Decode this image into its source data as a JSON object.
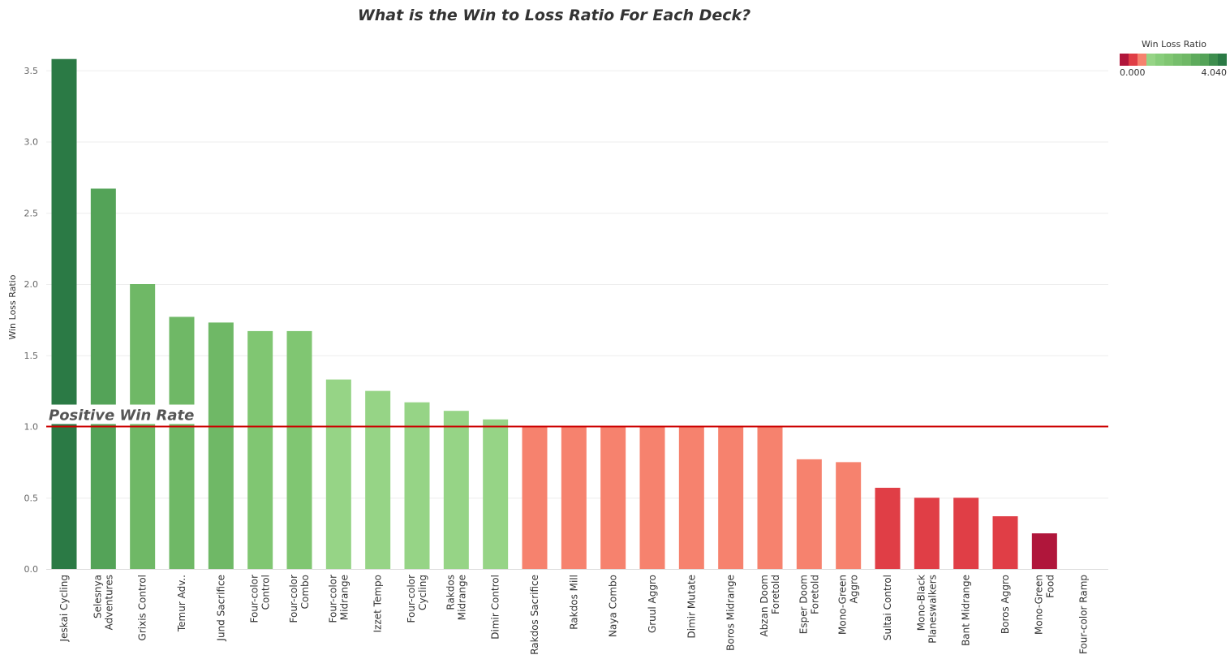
{
  "chart_data": {
    "type": "bar",
    "title": "What is the Win to Loss Ratio For Each Deck?",
    "ylabel": "Win Loss Ratio",
    "xlabel": "",
    "ylim": [
      0,
      3.65
    ],
    "yticks": [
      "0.0",
      "0.5",
      "1.0",
      "1.5",
      "2.0",
      "2.5",
      "3.0",
      "3.5"
    ],
    "grid": true,
    "categories": [
      "Jeskai Cycling",
      "Selesnya Adventures",
      "Grixis Control",
      "Temur Adv..",
      "Jund Sacrifice",
      "Four-color Control",
      "Four-color Combo",
      "Four-color Midrange",
      "Izzet Tempo",
      "Four-color Cycling",
      "Rakdos Midrange",
      "Dimir Control",
      "Rakdos Sacrifice",
      "Rakdos Mill",
      "Naya Combo",
      "Gruul Aggro",
      "Dimir Mutate",
      "Boros Midrange",
      "Abzan Doom Foretold",
      "Esper Doom Foretold",
      "Mono-Green Aggro",
      "Sultai Control",
      "Mono-Black Planeswalkers",
      "Bant Midrange",
      "Boros Aggro",
      "Mono-Green Food",
      "Four-color Ramp"
    ],
    "category_lines": [
      [
        "Jeskai Cycling"
      ],
      [
        "Selesnya",
        "Adventures"
      ],
      [
        "Grixis Control"
      ],
      [
        "Temur Adv.."
      ],
      [
        "Jund Sacrifice"
      ],
      [
        "Four-color",
        "Control"
      ],
      [
        "Four-color",
        "Combo"
      ],
      [
        "Four-color",
        "Midrange"
      ],
      [
        "Izzet Tempo"
      ],
      [
        "Four-color",
        "Cycling"
      ],
      [
        "Rakdos",
        "Midrange"
      ],
      [
        "Dimir Control"
      ],
      [
        "Rakdos Sacrifice"
      ],
      [
        "Rakdos Mill"
      ],
      [
        "Naya Combo"
      ],
      [
        "Gruul Aggro"
      ],
      [
        "Dimir Mutate"
      ],
      [
        "Boros Midrange"
      ],
      [
        "Abzan Doom",
        "Foretold"
      ],
      [
        "Esper Doom",
        "Foretold"
      ],
      [
        "Mono-Green",
        "Aggro"
      ],
      [
        "Sultai Control"
      ],
      [
        "Mono-Black",
        "Planeswalkers"
      ],
      [
        "Bant Midrange"
      ],
      [
        "Boros Aggro"
      ],
      [
        "Mono-Green",
        "Food"
      ],
      [
        "Four-color Ramp"
      ]
    ],
    "values": [
      3.58,
      2.67,
      2.0,
      1.77,
      1.73,
      1.67,
      1.67,
      1.33,
      1.25,
      1.17,
      1.11,
      1.05,
      1.0,
      1.0,
      1.0,
      1.0,
      1.0,
      1.0,
      1.0,
      0.77,
      0.75,
      0.57,
      0.5,
      0.5,
      0.37,
      0.25,
      0.0
    ],
    "colors": [
      "#2b7a45",
      "#54a358",
      "#6fb866",
      "#6fb866",
      "#6fb866",
      "#80c672",
      "#80c672",
      "#96d486",
      "#96d486",
      "#96d486",
      "#96d486",
      "#96d486",
      "#f6826e",
      "#f6826e",
      "#f6826e",
      "#f6826e",
      "#f6826e",
      "#f6826e",
      "#f6826e",
      "#f6826e",
      "#f6826e",
      "#e03e46",
      "#e03e46",
      "#e03e46",
      "#e03e46",
      "#b0163b",
      "#b0163b"
    ],
    "reference_line": {
      "value": 1.0,
      "label": "Positive Win Rate",
      "color": "#cc0000"
    },
    "legend": {
      "title": "Win Loss Ratio",
      "min_label": "0.000",
      "max_label": "4.040",
      "placement": "top-right",
      "swatches": [
        "#b0163b",
        "#e03e46",
        "#f6826e",
        "#96d486",
        "#88cd7b",
        "#80c672",
        "#76be6c",
        "#6fb866",
        "#5eab5c",
        "#54a358",
        "#3e8e4e",
        "#2b7a45"
      ]
    }
  }
}
